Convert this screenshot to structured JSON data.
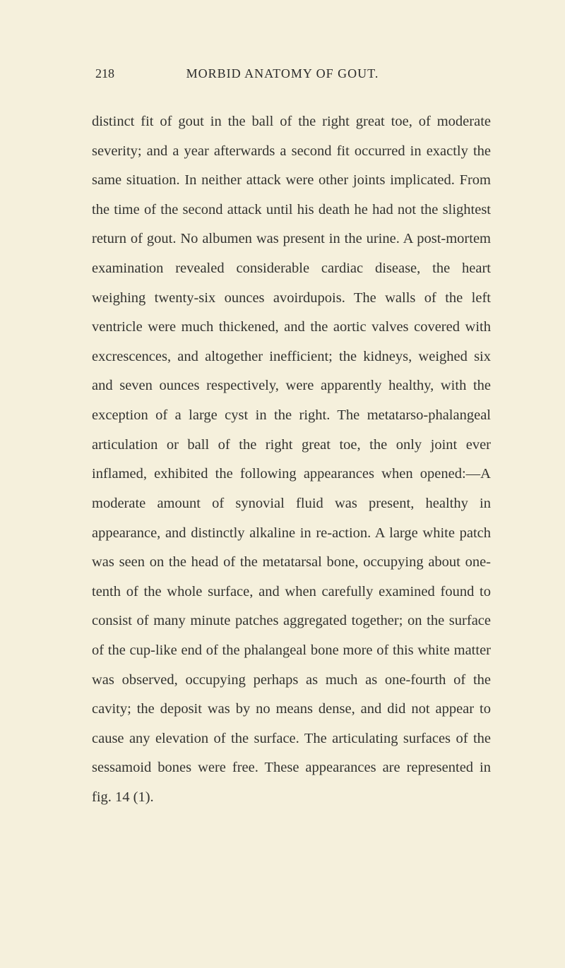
{
  "page": {
    "number": "218",
    "header": "MORBID ANATOMY OF GOUT.",
    "body": "distinct fit of gout in the ball of the right great toe, of moderate severity; and a year afterwards a second fit occurred in exactly the same situation. In neither attack were other joints implicated. From the time of the second attack until his death he had not the slightest return of gout. No albumen was present in the urine. A post-mortem examination revealed considerable cardiac disease, the heart weighing twenty-six ounces avoirdupois. The walls of the left ventricle were much thickened, and the aortic valves covered with excrescences, and altogether inefficient; the kidneys, weighed six and seven ounces respectively, were apparently healthy, with the exception of a large cyst in the right. The metatarso-phalangeal articulation or ball of the right great toe, the only joint ever inflamed, exhibited the following appearances when opened:—A moderate amount of synovial fluid was present, healthy in appearance, and distinctly alkaline in re-action. A large white patch was seen on the head of the metatarsal bone, occupying about one-tenth of the whole surface, and when carefully examined found to consist of many minute patches aggregated together; on the surface of the cup-like end of the phalangeal bone more of this white matter was observed, occupying perhaps as much as one-fourth of the cavity; the deposit was by no means dense, and did not appear to cause any elevation of the surface. The articulating surfaces of the sessamoid bones were free. These appearances are represented in fig. 14 (1)."
  },
  "colors": {
    "background": "#f5f0dc",
    "text": "#2a2a2a",
    "body_text": "#333330"
  },
  "typography": {
    "body_fontsize": 20.5,
    "header_fontsize": 18,
    "line_height": 2.03,
    "font_family": "Georgia, Times New Roman, serif"
  }
}
